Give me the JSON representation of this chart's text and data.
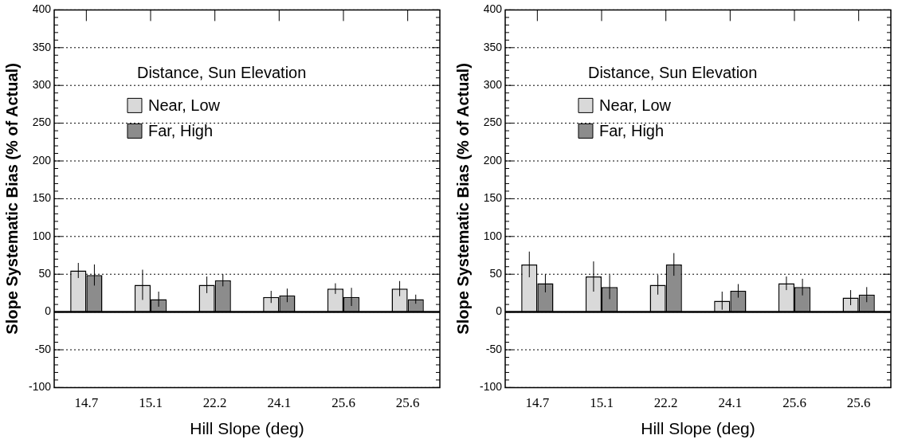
{
  "chart_data": [
    {
      "type": "bar",
      "categories": [
        "14.7",
        "15.1",
        "22.2",
        "24.1",
        "25.6",
        "25.6"
      ],
      "xlabel": "Hill Slope (deg)",
      "ylabel": "Slope Systematic Bias (% of Actual)",
      "legend_title": "Distance, Sun Elevation",
      "legend": "top",
      "grid": "y",
      "ylim": [
        -100,
        400
      ],
      "yticks": [
        -100,
        {
          "value": -90,
          "label": null
        },
        {
          "value": -80,
          "label": null
        },
        {
          "value": -70,
          "label": null
        },
        {
          "value": -60,
          "label": null
        },
        -50,
        {
          "value": -40,
          "label": null
        },
        {
          "value": -30,
          "label": null
        },
        {
          "value": -20,
          "label": null
        },
        {
          "value": -10,
          "label": null
        },
        0,
        {
          "value": 10,
          "label": null
        },
        {
          "value": 20,
          "label": null
        },
        {
          "value": 30,
          "label": null
        },
        {
          "value": 40,
          "label": null
        },
        50,
        {
          "value": 60,
          "label": null
        },
        {
          "value": 70,
          "label": null
        },
        {
          "value": 80,
          "label": null
        },
        {
          "value": 90,
          "label": null
        },
        100,
        {
          "value": 110,
          "label": null
        },
        {
          "value": 120,
          "label": null
        },
        {
          "value": 130,
          "label": null
        },
        {
          "value": 140,
          "label": null
        },
        150,
        {
          "value": 160,
          "label": null
        },
        {
          "value": 170,
          "label": null
        },
        {
          "value": 180,
          "label": null
        },
        {
          "value": 190,
          "label": null
        },
        200,
        {
          "value": 210,
          "label": null
        },
        {
          "value": 220,
          "label": null
        },
        {
          "value": 230,
          "label": null
        },
        {
          "value": 240,
          "label": null
        },
        250,
        {
          "value": 260,
          "label": null
        },
        {
          "value": 270,
          "label": null
        },
        {
          "value": 280,
          "label": null
        },
        {
          "value": 290,
          "label": null
        },
        300,
        {
          "value": 310,
          "label": null
        },
        {
          "value": 320,
          "label": null
        },
        {
          "value": 330,
          "label": null
        },
        {
          "value": 340,
          "label": null
        },
        350,
        {
          "value": 360,
          "label": null
        },
        {
          "value": 370,
          "label": null
        },
        {
          "value": 380,
          "label": null
        },
        {
          "value": 390,
          "label": null
        },
        400
      ],
      "ref_lines": [
        {
          "axis": "y",
          "value": 0,
          "color": "#000000"
        }
      ],
      "series": [
        {
          "name": "Near, Low",
          "color": "#d9d9d9",
          "values": [
            55,
            36,
            36,
            20,
            31,
            31
          ],
          "errors": [
            10,
            20,
            11,
            8,
            7,
            10
          ]
        },
        {
          "name": "Far, High",
          "color": "#8c8c8c",
          "values": [
            49,
            17,
            42,
            22,
            20,
            17
          ],
          "errors": [
            14,
            10,
            8,
            9,
            12,
            6
          ]
        }
      ]
    },
    {
      "type": "bar",
      "categories": [
        "14.7",
        "15.1",
        "22.2",
        "24.1",
        "25.6",
        "25.6"
      ],
      "xlabel": "Hill Slope (deg)",
      "ylabel": "Slope Systematic Bias (% of Actual)",
      "legend_title": "Distance, Sun Elevation",
      "legend": "top",
      "grid": "y",
      "ylim": [
        -100,
        400
      ],
      "yticks": [
        -100,
        {
          "value": -90,
          "label": null
        },
        {
          "value": -80,
          "label": null
        },
        {
          "value": -70,
          "label": null
        },
        {
          "value": -60,
          "label": null
        },
        -50,
        {
          "value": -40,
          "label": null
        },
        {
          "value": -30,
          "label": null
        },
        {
          "value": -20,
          "label": null
        },
        {
          "value": -10,
          "label": null
        },
        0,
        {
          "value": 10,
          "label": null
        },
        {
          "value": 20,
          "label": null
        },
        {
          "value": 30,
          "label": null
        },
        {
          "value": 40,
          "label": null
        },
        50,
        {
          "value": 60,
          "label": null
        },
        {
          "value": 70,
          "label": null
        },
        {
          "value": 80,
          "label": null
        },
        {
          "value": 90,
          "label": null
        },
        100,
        {
          "value": 110,
          "label": null
        },
        {
          "value": 120,
          "label": null
        },
        {
          "value": 130,
          "label": null
        },
        {
          "value": 140,
          "label": null
        },
        150,
        {
          "value": 160,
          "label": null
        },
        {
          "value": 170,
          "label": null
        },
        {
          "value": 180,
          "label": null
        },
        {
          "value": 190,
          "label": null
        },
        200,
        {
          "value": 210,
          "label": null
        },
        {
          "value": 220,
          "label": null
        },
        {
          "value": 230,
          "label": null
        },
        {
          "value": 240,
          "label": null
        },
        250,
        {
          "value": 260,
          "label": null
        },
        {
          "value": 270,
          "label": null
        },
        {
          "value": 280,
          "label": null
        },
        {
          "value": 290,
          "label": null
        },
        300,
        {
          "value": 310,
          "label": null
        },
        {
          "value": 320,
          "label": null
        },
        {
          "value": 330,
          "label": null
        },
        {
          "value": 340,
          "label": null
        },
        350,
        {
          "value": 360,
          "label": null
        },
        {
          "value": 370,
          "label": null
        },
        {
          "value": 380,
          "label": null
        },
        {
          "value": 390,
          "label": null
        },
        400
      ],
      "ref_lines": [
        {
          "axis": "y",
          "value": 0,
          "color": "#000000"
        }
      ],
      "series": [
        {
          "name": "Near, Low",
          "color": "#d9d9d9",
          "values": [
            63,
            47,
            36,
            15,
            38,
            19
          ],
          "errors": [
            17,
            20,
            13,
            12,
            9,
            10
          ]
        },
        {
          "name": "Far, High",
          "color": "#8c8c8c",
          "values": [
            38,
            33,
            63,
            28,
            33,
            23
          ],
          "errors": [
            12,
            16,
            15,
            9,
            11,
            10
          ]
        }
      ]
    }
  ]
}
